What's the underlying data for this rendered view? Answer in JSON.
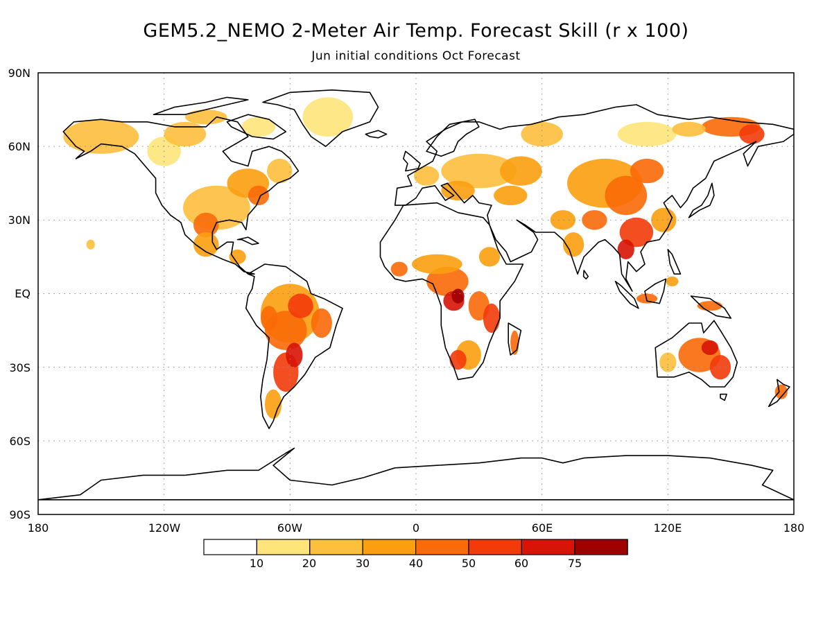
{
  "title": "GEM5.2_NEMO 2-Meter Air Temp. Forecast Skill (r x 100)",
  "subtitle": "Jun initial conditions  Oct Forecast",
  "lat_labels": [
    "90N",
    "60N",
    "30N",
    "EQ",
    "30S",
    "60S",
    "90S"
  ],
  "lon_labels": [
    "180",
    "120W",
    "60W",
    "0",
    "60E",
    "120E",
    "180"
  ],
  "colorbar": {
    "labels": [
      "10",
      "20",
      "30",
      "40",
      "50",
      "60",
      "75"
    ],
    "colors": [
      "#ffffff",
      "#fee47a",
      "#fdbf3c",
      "#fb9e0f",
      "#f96a08",
      "#f23a0a",
      "#d71406",
      "#a00000"
    ]
  },
  "colors": {
    "coastline": "#000000",
    "gridline": "#8c8c8c"
  }
}
